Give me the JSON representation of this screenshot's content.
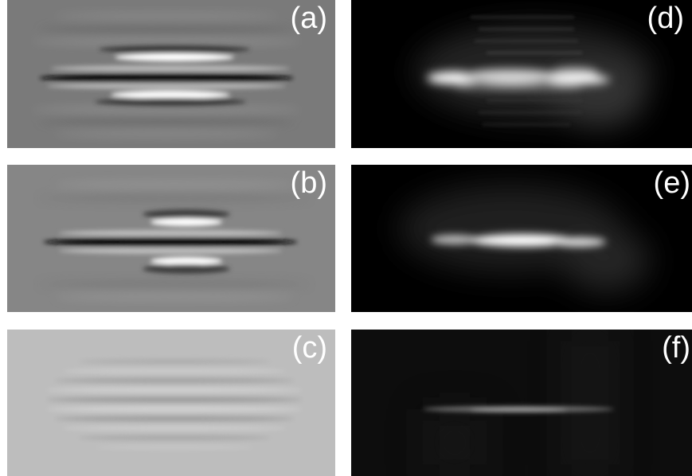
{
  "panels": {
    "a": {
      "label": "(a)"
    },
    "b": {
      "label": "(b)"
    },
    "c": {
      "label": "(c)"
    },
    "d": {
      "label": "(d)"
    },
    "e": {
      "label": "(e)"
    },
    "f": {
      "label": "(f)"
    }
  },
  "colors": {
    "panel_a_bg": "#7a7a7a",
    "panel_b_bg": "#868686",
    "panel_c_bg": "#bdbdbd",
    "dark_bg": "#000000",
    "label": "#ffffff"
  }
}
